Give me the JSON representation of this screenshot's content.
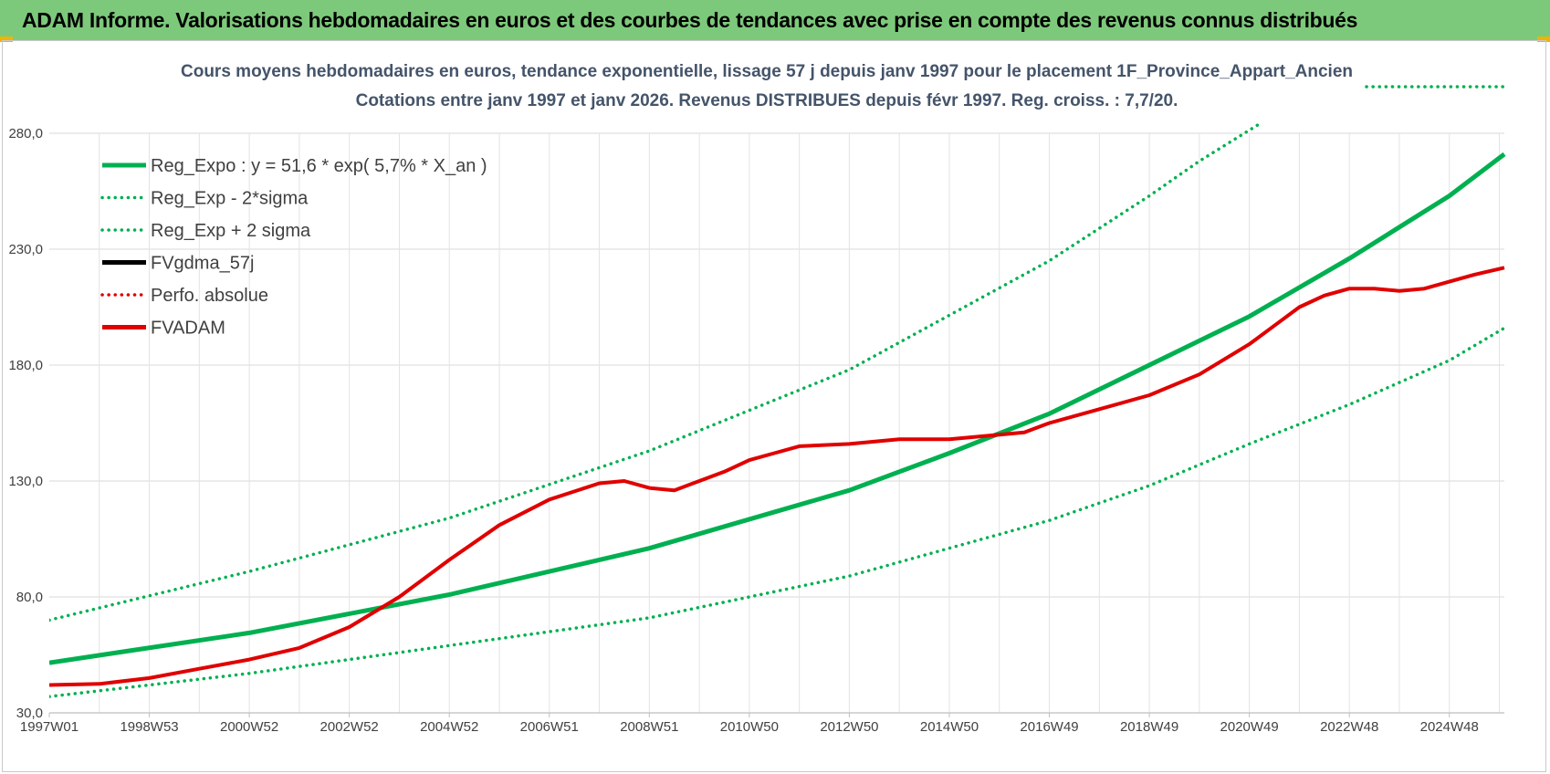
{
  "header": {
    "title": "ADAM Informe. Valorisations hebdomadaires en euros et des courbes de tendances avec prise en compte des revenus connus distribués"
  },
  "chart_data": {
    "type": "line",
    "title": "Cours moyens hebdomadaires en euros, tendance exponentielle, lissage 57 j depuis janv 1997 pour le placement 1F_Province_Appart_Ancien",
    "subtitle": "Cotations entre janv 1997 et janv 2026. Revenus DISTRIBUES depuis févr 1997. Reg. croiss. : 7,7/20.",
    "xlabel": "",
    "ylabel": "",
    "ylim": [
      30,
      280
    ],
    "xlim": [
      1997.0,
      2026.1
    ],
    "grid": true,
    "legend_position": "top-left",
    "y_ticks": [
      "30,0",
      "80,0",
      "130,0",
      "180,0",
      "230,0",
      "280,0"
    ],
    "x_ticks": [
      {
        "label": "1997W01",
        "x": 1997.0
      },
      {
        "label": "1998W53",
        "x": 1999.0
      },
      {
        "label": "2000W52",
        "x": 2001.0
      },
      {
        "label": "2002W52",
        "x": 2003.0
      },
      {
        "label": "2004W52",
        "x": 2005.0
      },
      {
        "label": "2006W51",
        "x": 2007.0
      },
      {
        "label": "2008W51",
        "x": 2009.0
      },
      {
        "label": "2010W50",
        "x": 2011.0
      },
      {
        "label": "2012W50",
        "x": 2013.0
      },
      {
        "label": "2014W50",
        "x": 2015.0
      },
      {
        "label": "2016W49",
        "x": 2017.0
      },
      {
        "label": "2018W49",
        "x": 2019.0
      },
      {
        "label": "2020W49",
        "x": 2021.0
      },
      {
        "label": "2022W48",
        "x": 2023.0
      },
      {
        "label": "2024W48",
        "x": 2025.0
      }
    ],
    "series": [
      {
        "name": "Reg_Expo : y = 51,6 * exp( 5,7% *  X_an )",
        "color": "#00b050",
        "style": "solid",
        "x": [
          1997.0,
          2001.0,
          2005.0,
          2009.0,
          2013.0,
          2015.0,
          2017.0,
          2021.0,
          2023.0,
          2025.0,
          2026.1
        ],
        "y": [
          51.6,
          64.5,
          81,
          101,
          126,
          142,
          159,
          201,
          226,
          253,
          271
        ]
      },
      {
        "name": "Reg_Exp - 2*sigma",
        "color": "#00b050",
        "style": "dotted",
        "x": [
          1997.0,
          2001.0,
          2005.0,
          2009.0,
          2013.0,
          2017.0,
          2019.0,
          2021.0,
          2023.0,
          2025.0,
          2026.1
        ],
        "y": [
          37,
          47,
          59,
          71,
          89,
          113,
          128,
          146,
          163,
          182,
          196
        ]
      },
      {
        "name": "Reg_Exp + 2 sigma",
        "color": "#00b050",
        "style": "dotted",
        "x": [
          1997.0,
          2001.0,
          2005.0,
          2009.0,
          2013.0,
          2017.0,
          2019.0,
          2020.0,
          2021.2
        ],
        "y": [
          70,
          91,
          114,
          143,
          178,
          225,
          253,
          268,
          284
        ]
      },
      {
        "name": "FVgdma_57j",
        "color": "#000000",
        "style": "solid",
        "x": [],
        "y": []
      },
      {
        "name": "Perfo. absolue",
        "color": "#e00000",
        "style": "dotted",
        "x": [],
        "y": []
      },
      {
        "name": "FVADAM",
        "color": "#e00000",
        "style": "solid",
        "x": [
          1997.0,
          1998.0,
          1999.0,
          2000.0,
          2001.0,
          2002.0,
          2003.0,
          2004.0,
          2005.0,
          2006.0,
          2007.0,
          2008.0,
          2008.5,
          2009.0,
          2009.5,
          2010.0,
          2010.5,
          2011.0,
          2011.5,
          2012.0,
          2013.0,
          2014.0,
          2015.0,
          2016.0,
          2016.5,
          2017.0,
          2018.0,
          2019.0,
          2020.0,
          2021.0,
          2022.0,
          2022.5,
          2023.0,
          2023.5,
          2024.0,
          2024.5,
          2025.0,
          2025.5,
          2026.1
        ],
        "y": [
          42,
          42.5,
          45,
          49,
          53,
          58,
          67,
          80,
          96,
          111,
          122,
          129,
          130,
          127,
          126,
          130,
          134,
          139,
          142,
          145,
          146,
          148,
          148,
          150,
          151,
          155,
          161,
          167,
          176,
          189,
          205,
          210,
          213,
          213,
          212,
          213,
          216,
          219,
          222
        ]
      }
    ]
  }
}
